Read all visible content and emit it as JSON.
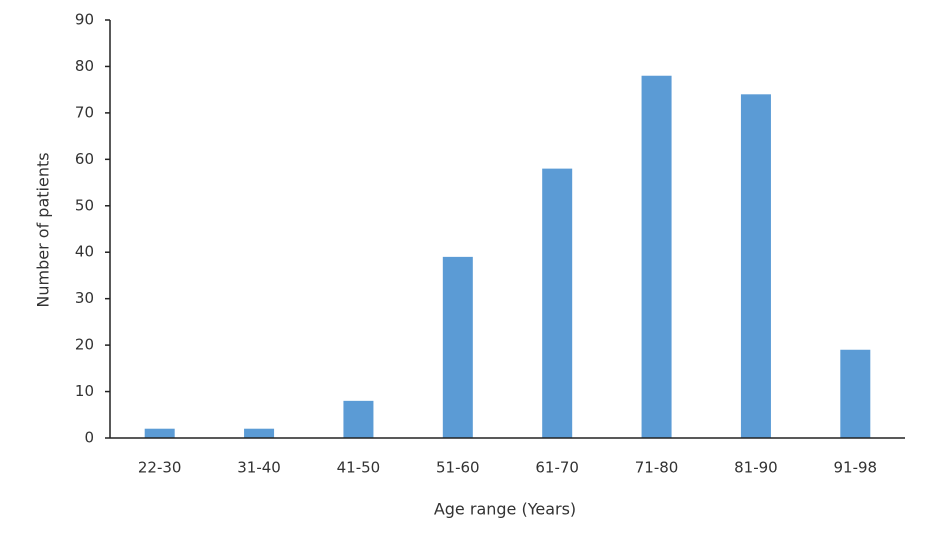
{
  "chart_data": {
    "type": "bar",
    "x_label": "Age range (Years)",
    "y_label": "Number of patients",
    "categories": [
      "22-30",
      "31-40",
      "41-50",
      "51-60",
      "61-70",
      "71-80",
      "81-90",
      "91-98"
    ],
    "values": [
      2,
      2,
      8,
      39,
      58,
      78,
      74,
      19
    ],
    "color": "#5b9bd5",
    "ylim": [
      0,
      90
    ],
    "yticks": [
      0,
      10,
      20,
      30,
      40,
      50,
      60,
      70,
      80,
      90
    ],
    "grid": false
  }
}
